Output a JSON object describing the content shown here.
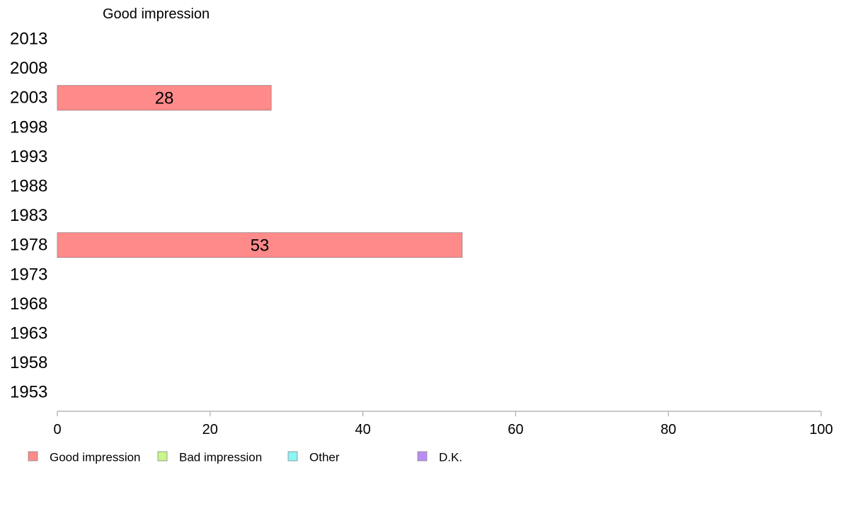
{
  "chart_data": {
    "type": "bar",
    "orientation": "horizontal",
    "title": "Good impression",
    "categories": [
      "2013",
      "2008",
      "2003",
      "1998",
      "1993",
      "1988",
      "1983",
      "1978",
      "1973",
      "1968",
      "1963",
      "1958",
      "1953"
    ],
    "series": [
      {
        "name": "Good impression",
        "color": "#ff8a8a",
        "values": [
          null,
          null,
          28,
          null,
          null,
          null,
          null,
          53,
          null,
          null,
          null,
          null,
          null
        ]
      }
    ],
    "data_labels": [
      "",
      "",
      "28",
      "",
      "",
      "",
      "",
      "53",
      "",
      "",
      "",
      "",
      ""
    ],
    "xlim": [
      0,
      100
    ],
    "xticks": [
      0,
      20,
      40,
      60,
      80,
      100
    ],
    "xlabel": "",
    "ylabel": "",
    "grid": false,
    "legend": {
      "position": "bottom",
      "items": [
        {
          "label": "Good impression",
          "color": "#ff8a8a"
        },
        {
          "label": "Bad impression",
          "color": "#c8f58c"
        },
        {
          "label": "Other",
          "color": "#8cf5f5"
        },
        {
          "label": "D.K.",
          "color": "#b98cf5"
        }
      ]
    }
  }
}
